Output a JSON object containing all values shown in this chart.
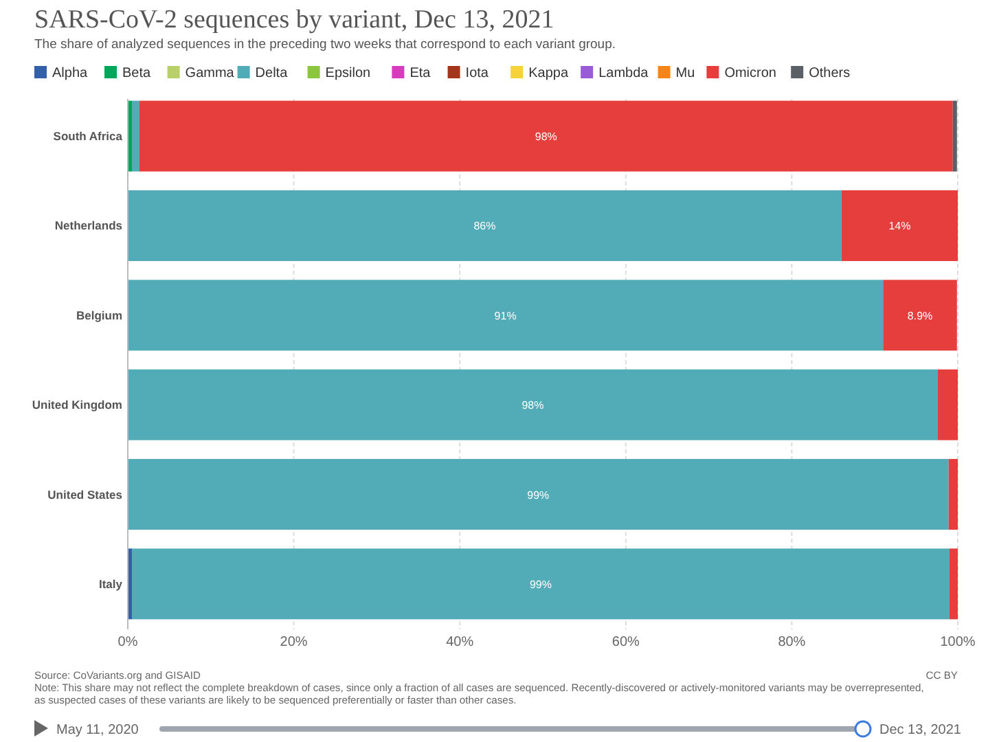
{
  "chart_data": {
    "type": "bar",
    "orientation": "horizontal",
    "stacked": true,
    "title": "SARS-CoV-2 sequences by variant, Dec 13, 2021",
    "subtitle": "The share of analyzed sequences in the preceding two weeks that correspond to each variant group.",
    "categories": [
      "South Africa",
      "Netherlands",
      "Belgium",
      "United Kingdom",
      "United States",
      "Italy"
    ],
    "series": [
      {
        "name": "Alpha",
        "color": "#3360a9",
        "values": [
          0,
          0,
          0,
          0,
          0,
          0.5
        ],
        "value_labels": [
          null,
          null,
          null,
          null,
          null,
          null
        ]
      },
      {
        "name": "Beta",
        "color": "#00a75a",
        "values": [
          0.5,
          0,
          0,
          0,
          0,
          0
        ],
        "value_labels": [
          null,
          null,
          null,
          null,
          null,
          null
        ]
      },
      {
        "name": "Gamma",
        "color": "#b8cf6a",
        "values": [
          0,
          0,
          0,
          0,
          0,
          0
        ],
        "value_labels": [
          null,
          null,
          null,
          null,
          null,
          null
        ]
      },
      {
        "name": "Delta",
        "color": "#52acb7",
        "values": [
          0.9,
          86,
          91,
          97.6,
          98.9,
          98.5
        ],
        "value_labels": [
          null,
          "86%",
          "91%",
          "98%",
          "99%",
          "99%"
        ]
      },
      {
        "name": "Epsilon",
        "color": "#8cc63f",
        "values": [
          0,
          0,
          0,
          0,
          0,
          0
        ],
        "value_labels": [
          null,
          null,
          null,
          null,
          null,
          null
        ]
      },
      {
        "name": "Eta",
        "color": "#d63cbb",
        "values": [
          0,
          0,
          0,
          0,
          0,
          0
        ],
        "value_labels": [
          null,
          null,
          null,
          null,
          null,
          null
        ]
      },
      {
        "name": "Iota",
        "color": "#a2361c",
        "values": [
          0,
          0,
          0,
          0,
          0,
          0
        ],
        "value_labels": [
          null,
          null,
          null,
          null,
          null,
          null
        ]
      },
      {
        "name": "Kappa",
        "color": "#f6d33b",
        "values": [
          0,
          0,
          0,
          0,
          0,
          0
        ],
        "value_labels": [
          null,
          null,
          null,
          null,
          null,
          null
        ]
      },
      {
        "name": "Lambda",
        "color": "#9a5bd6",
        "values": [
          0,
          0,
          0,
          0,
          0,
          0
        ],
        "value_labels": [
          null,
          null,
          null,
          null,
          null,
          null
        ]
      },
      {
        "name": "Mu",
        "color": "#f78417",
        "values": [
          0,
          0,
          0,
          0,
          0,
          0
        ],
        "value_labels": [
          null,
          null,
          null,
          null,
          null,
          null
        ]
      },
      {
        "name": "Omicron",
        "color": "#e63d3d",
        "values": [
          98,
          14,
          8.9,
          2.4,
          1.1,
          1.0
        ],
        "value_labels": [
          "98%",
          "14%",
          "8.9%",
          null,
          null,
          null
        ]
      },
      {
        "name": "Others",
        "color": "#5b5f66",
        "values": [
          0.5,
          0,
          0,
          0,
          0,
          0
        ],
        "value_labels": [
          null,
          null,
          null,
          null,
          null,
          null
        ]
      }
    ],
    "xlim": [
      0,
      100
    ],
    "xticks": [
      {
        "value": 0,
        "label": "0%"
      },
      {
        "value": 20,
        "label": "20%"
      },
      {
        "value": 40,
        "label": "40%"
      },
      {
        "value": 60,
        "label": "60%"
      },
      {
        "value": 80,
        "label": "80%"
      },
      {
        "value": 100,
        "label": "100%"
      }
    ],
    "grid": "x",
    "legend": "top left",
    "annotations": [
      "Source: CoVariants.org and GISAID",
      "Note: This share may not reflect the complete breakdown of cases, since only a fraction of all cases are sequenced. Recently-discovered or actively-monitored variants may be overrepresented, as suspected cases of these variants are likely to be sequenced preferentially or faster than other cases.",
      "CC BY",
      "May 11, 2020",
      "Dec 13, 2021"
    ]
  }
}
